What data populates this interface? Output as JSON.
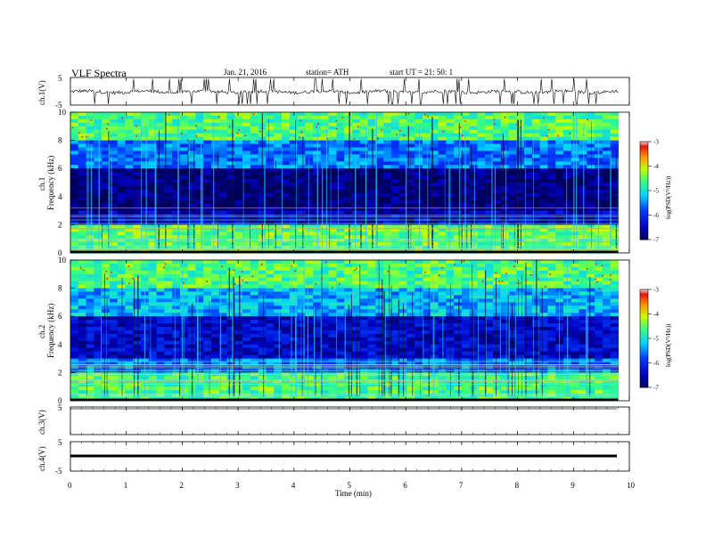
{
  "header": {
    "title": "VLF  Spectra",
    "date": "Jan. 21, 2016",
    "station": "station= ATH",
    "start": "start  UT  =   21: 50: 1"
  },
  "chart_data": [
    {
      "type": "line",
      "panel": "ch1-waveform",
      "ylabel": "ch.1(V)",
      "y_ticks": [
        "5",
        "-5"
      ],
      "ylim": [
        -5,
        5
      ],
      "xlim": [
        0,
        10
      ],
      "data_end_x": 9.8,
      "baseline_y": -0.2,
      "spike_count_approx": 60
    },
    {
      "type": "heatmap",
      "panel": "ch1-spectrogram",
      "ylabel": "Frequency  (kHz)",
      "ylabel_prefix": "ch.1",
      "y_ticks": [
        "10",
        "8",
        "6",
        "4",
        "2",
        "0"
      ],
      "ylim": [
        0,
        10
      ],
      "xlim": [
        0,
        10
      ],
      "data_end_x": 9.8,
      "colorbar": {
        "label": "log(PSD(V²/Hz))",
        "ticks": [
          "-3",
          "-4",
          "-5",
          "-6",
          "-7"
        ],
        "range": [
          -7,
          -3
        ]
      },
      "bands_kHz": [
        {
          "from": 0,
          "to": 2,
          "level": -4.5
        },
        {
          "from": 2,
          "to": 3,
          "level": -6.5
        },
        {
          "from": 3,
          "to": 6,
          "level": -6.9
        },
        {
          "from": 6,
          "to": 8,
          "level": -5.6
        },
        {
          "from": 8,
          "to": 10,
          "level": -4.6
        }
      ]
    },
    {
      "type": "heatmap",
      "panel": "ch2-spectrogram",
      "ylabel": "Frequency  (kHz)",
      "ylabel_prefix": "ch.2",
      "y_ticks": [
        "10",
        "8",
        "6",
        "4",
        "2",
        "0"
      ],
      "ylim": [
        0,
        10
      ],
      "xlim": [
        0,
        10
      ],
      "data_end_x": 9.8,
      "colorbar": {
        "label": "log(PSD(V²/Hz))",
        "ticks": [
          "-3",
          "-4",
          "-5",
          "-6",
          "-7"
        ],
        "range": [
          -7,
          -3
        ]
      },
      "bands_kHz": [
        {
          "from": 0,
          "to": 2,
          "level": -4.6
        },
        {
          "from": 2,
          "to": 3,
          "level": -5.6
        },
        {
          "from": 3,
          "to": 6,
          "level": -6.4
        },
        {
          "from": 6,
          "to": 8,
          "level": -5.3
        },
        {
          "from": 8,
          "to": 10,
          "level": -4.6
        }
      ]
    },
    {
      "type": "line",
      "panel": "ch3-waveform",
      "ylabel": "ch.3(V)",
      "y_ticks": [
        "5"
      ],
      "ylim": [
        -5,
        5
      ],
      "xlim": [
        0,
        10
      ],
      "data_end_x": 9.8,
      "baseline_y": 4.5
    },
    {
      "type": "line",
      "panel": "ch4-waveform",
      "ylabel": "ch.4(V)",
      "y_ticks": [
        "5",
        "-5"
      ],
      "ylim": [
        -5,
        5
      ],
      "xlim": [
        0,
        10
      ],
      "data_end_x": 9.8,
      "baseline_y": 0.0,
      "xlabel": "Time  (min)",
      "x_ticks": [
        "0",
        "1",
        "2",
        "3",
        "4",
        "5",
        "6",
        "7",
        "8",
        "9",
        "10"
      ]
    }
  ]
}
